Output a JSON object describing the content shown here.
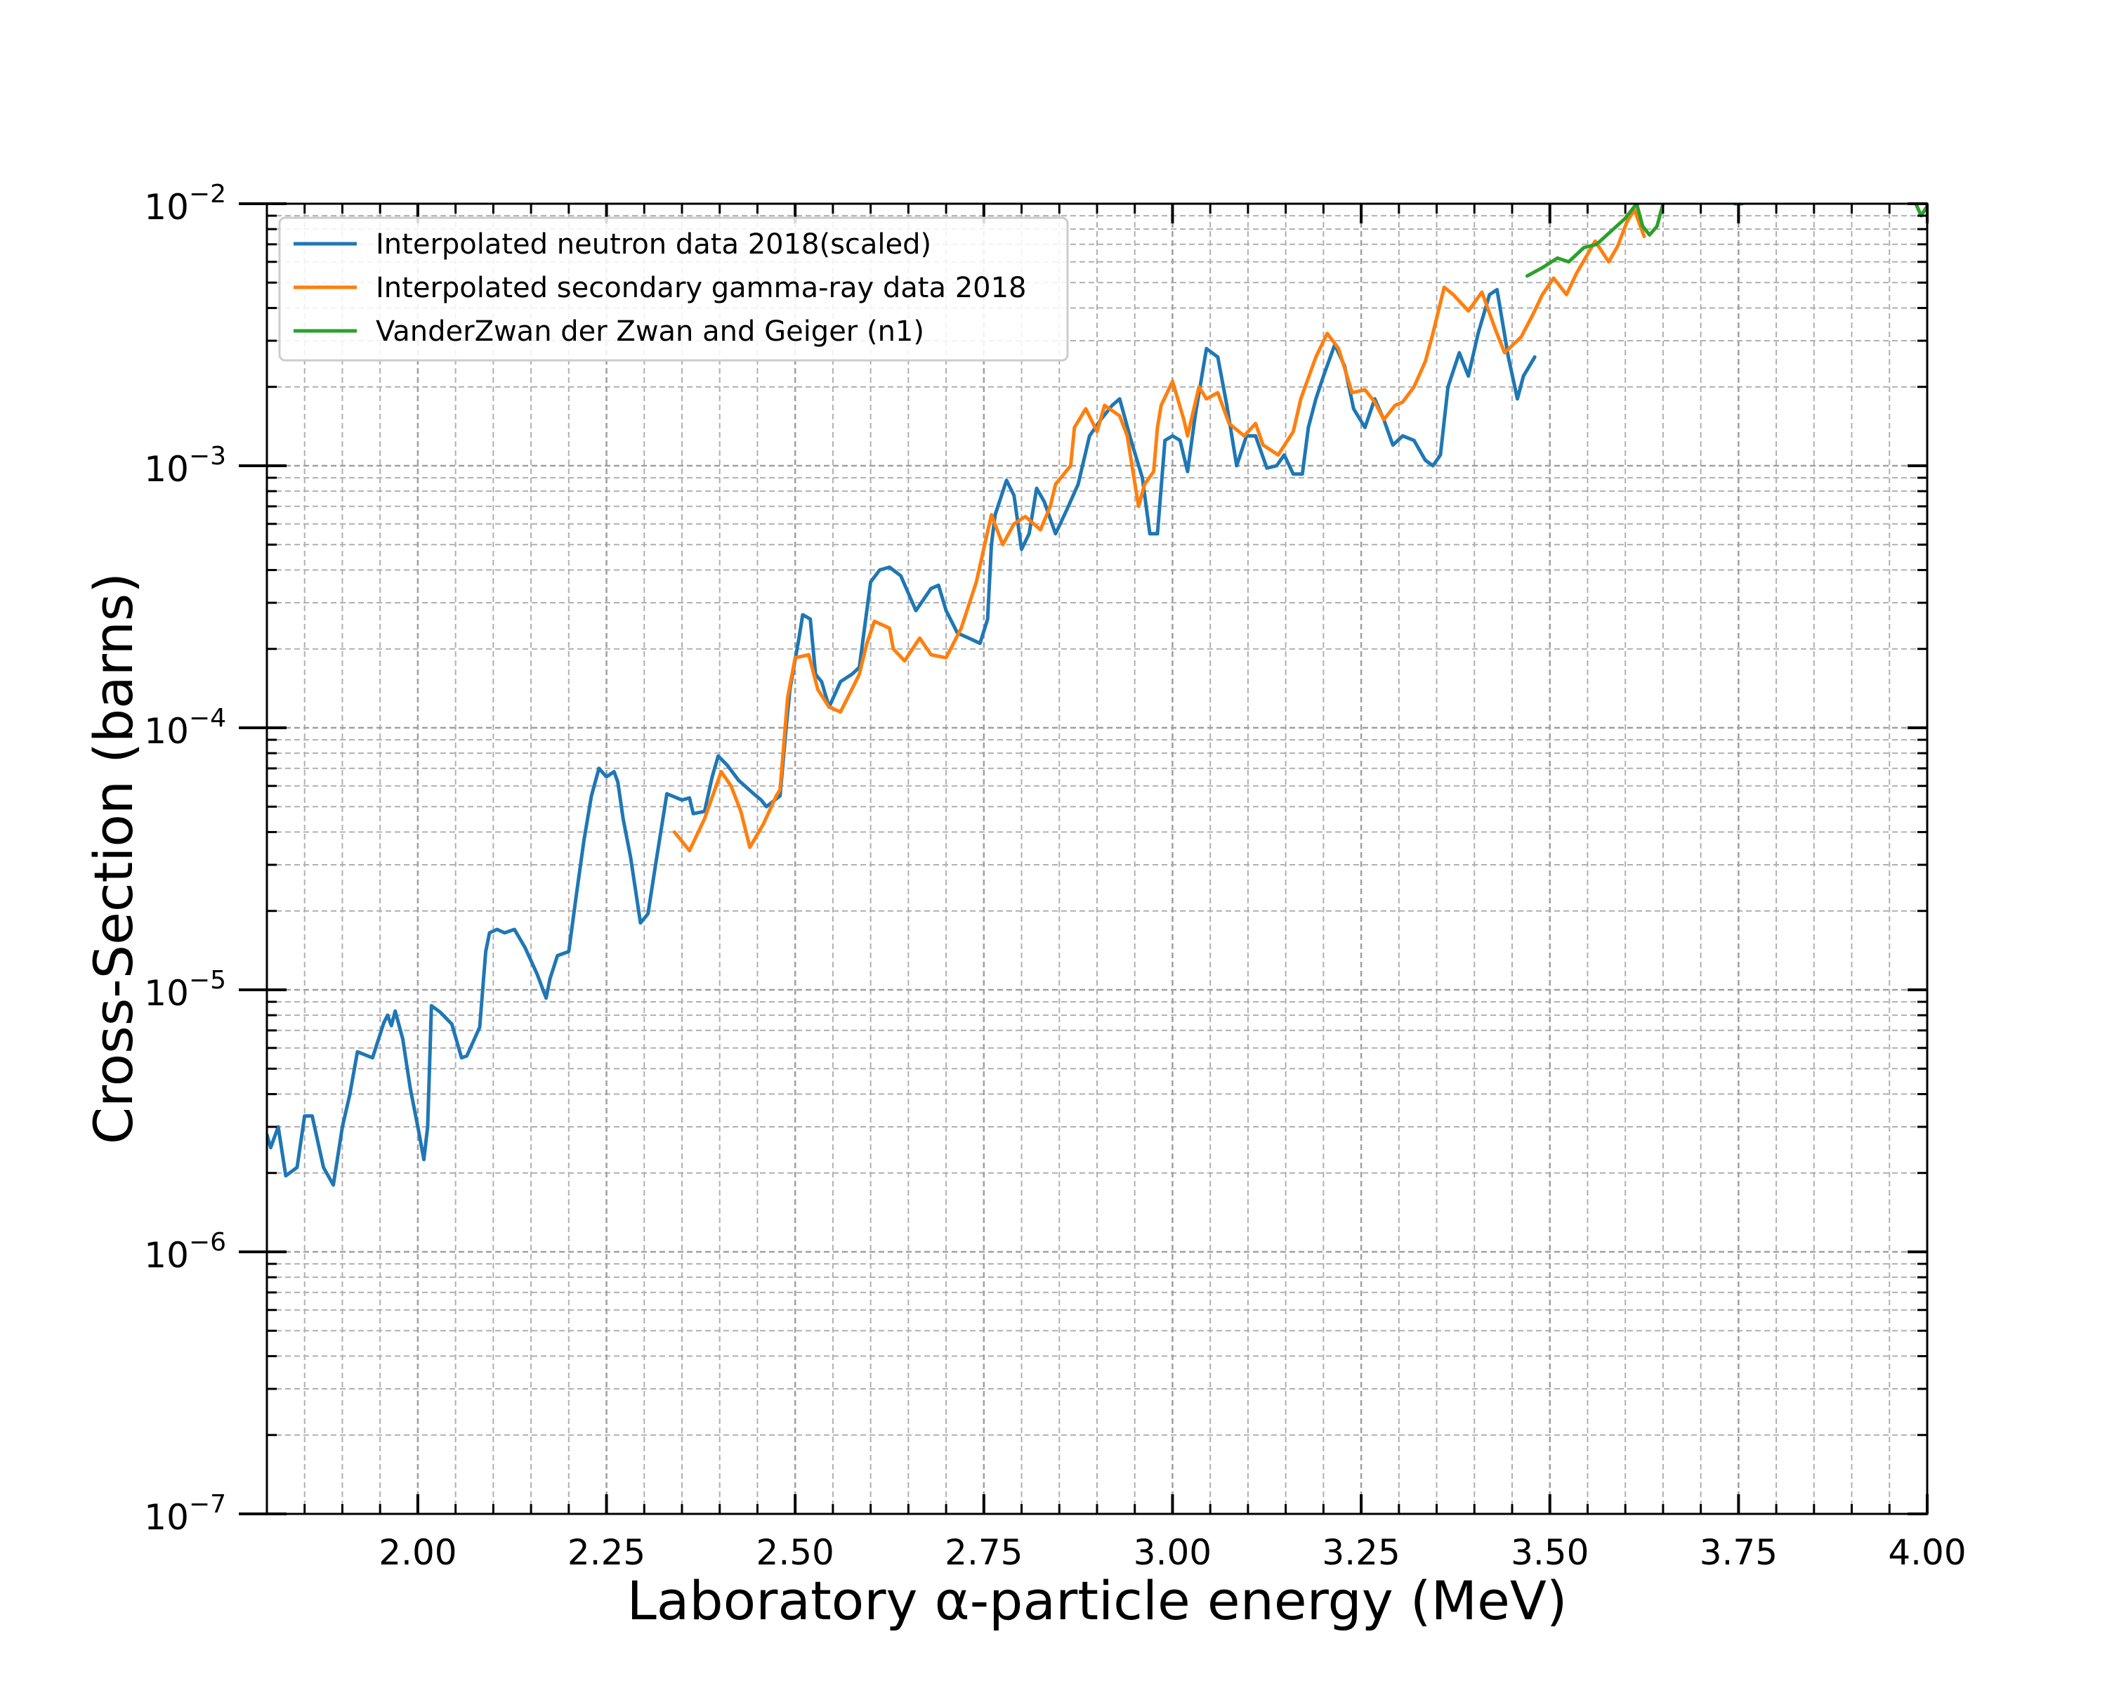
{
  "chart_data": {
    "type": "line",
    "xlabel": "Laboratory α-particle energy (MeV)",
    "ylabel": "Cross-Section (barns)",
    "xlim": [
      1.8,
      4.0
    ],
    "ylim": [
      1e-07,
      0.01
    ],
    "yscale": "log",
    "grid": true,
    "legend_position": "top-left",
    "x_ticks": [
      {
        "value": 2.0,
        "label": "2.00"
      },
      {
        "value": 2.25,
        "label": "2.25"
      },
      {
        "value": 2.5,
        "label": "2.50"
      },
      {
        "value": 2.75,
        "label": "2.75"
      },
      {
        "value": 3.0,
        "label": "3.00"
      },
      {
        "value": 3.25,
        "label": "3.25"
      },
      {
        "value": 3.5,
        "label": "3.50"
      },
      {
        "value": 3.75,
        "label": "3.75"
      },
      {
        "value": 4.0,
        "label": "4.00"
      }
    ],
    "y_ticks": [
      {
        "value": 1e-07,
        "base": "10",
        "exp": "−7"
      },
      {
        "value": 1e-06,
        "base": "10",
        "exp": "−6"
      },
      {
        "value": 1e-05,
        "base": "10",
        "exp": "−5"
      },
      {
        "value": 0.0001,
        "base": "10",
        "exp": "−4"
      },
      {
        "value": 0.001,
        "base": "10",
        "exp": "−3"
      },
      {
        "value": 0.01,
        "base": "10",
        "exp": "−2"
      }
    ],
    "series": [
      {
        "name": "Interpolated neutron data 2018(scaled)",
        "color": "#1f77b4",
        "points": [
          [
            1.8,
            2.8e-06
          ],
          [
            1.805,
            2.5e-06
          ],
          [
            1.815,
            3e-06
          ],
          [
            1.825,
            1.95e-06
          ],
          [
            1.84,
            2.1e-06
          ],
          [
            1.85,
            3.3e-06
          ],
          [
            1.86,
            3.3e-06
          ],
          [
            1.875,
            2.1e-06
          ],
          [
            1.888,
            1.8e-06
          ],
          [
            1.9,
            3e-06
          ],
          [
            1.91,
            4e-06
          ],
          [
            1.92,
            5.8e-06
          ],
          [
            1.94,
            5.5e-06
          ],
          [
            1.955,
            7.5e-06
          ],
          [
            1.96,
            8e-06
          ],
          [
            1.965,
            7.3e-06
          ],
          [
            1.97,
            8.3e-06
          ],
          [
            1.98,
            6.5e-06
          ],
          [
            1.99,
            4.2e-06
          ],
          [
            2.0,
            3e-06
          ],
          [
            2.008,
            2.25e-06
          ],
          [
            2.013,
            3e-06
          ],
          [
            2.018,
            8.7e-06
          ],
          [
            2.03,
            8.2e-06
          ],
          [
            2.045,
            7.4e-06
          ],
          [
            2.058,
            5.5e-06
          ],
          [
            2.065,
            5.6e-06
          ],
          [
            2.082,
            7.2e-06
          ],
          [
            2.09,
            1.4e-05
          ],
          [
            2.095,
            1.65e-05
          ],
          [
            2.105,
            1.7e-05
          ],
          [
            2.115,
            1.65e-05
          ],
          [
            2.128,
            1.7e-05
          ],
          [
            2.142,
            1.45e-05
          ],
          [
            2.158,
            1.15e-05
          ],
          [
            2.17,
            9.3e-06
          ],
          [
            2.175,
            1.1e-05
          ],
          [
            2.185,
            1.35e-05
          ],
          [
            2.2,
            1.4e-05
          ],
          [
            2.21,
            2.3e-05
          ],
          [
            2.22,
            3.7e-05
          ],
          [
            2.23,
            5.5e-05
          ],
          [
            2.24,
            7e-05
          ],
          [
            2.25,
            6.5e-05
          ],
          [
            2.26,
            6.8e-05
          ],
          [
            2.265,
            6.2e-05
          ],
          [
            2.272,
            4.5e-05
          ],
          [
            2.282,
            3.2e-05
          ],
          [
            2.295,
            1.8e-05
          ],
          [
            2.305,
            1.95e-05
          ],
          [
            2.315,
            3e-05
          ],
          [
            2.32,
            3.7e-05
          ],
          [
            2.33,
            5.6e-05
          ],
          [
            2.35,
            5.3e-05
          ],
          [
            2.36,
            5.4e-05
          ],
          [
            2.365,
            4.7e-05
          ],
          [
            2.38,
            4.8e-05
          ],
          [
            2.39,
            6.5e-05
          ],
          [
            2.398,
            7.8e-05
          ],
          [
            2.41,
            7.2e-05
          ],
          [
            2.425,
            6.3e-05
          ],
          [
            2.445,
            5.6e-05
          ],
          [
            2.455,
            5.3e-05
          ],
          [
            2.462,
            5e-05
          ],
          [
            2.48,
            5.5e-05
          ],
          [
            2.488,
            0.0001
          ],
          [
            2.493,
            0.00014
          ],
          [
            2.505,
            0.00022
          ],
          [
            2.51,
            0.00027
          ],
          [
            2.52,
            0.00026
          ],
          [
            2.527,
            0.00016
          ],
          [
            2.535,
            0.00015
          ],
          [
            2.545,
            0.00012
          ],
          [
            2.56,
            0.00015
          ],
          [
            2.575,
            0.00016
          ],
          [
            2.585,
            0.00017
          ],
          [
            2.6,
            0.00036
          ],
          [
            2.612,
            0.0004
          ],
          [
            2.625,
            0.00041
          ],
          [
            2.64,
            0.00038
          ],
          [
            2.66,
            0.00028
          ],
          [
            2.68,
            0.00034
          ],
          [
            2.69,
            0.00035
          ],
          [
            2.7,
            0.00028
          ],
          [
            2.715,
            0.00023
          ],
          [
            2.73,
            0.00022
          ],
          [
            2.745,
            0.00021
          ],
          [
            2.755,
            0.00026
          ],
          [
            2.76,
            0.0005
          ],
          [
            2.765,
            0.00065
          ],
          [
            2.78,
            0.00088
          ],
          [
            2.79,
            0.00077
          ],
          [
            2.8,
            0.00048
          ],
          [
            2.81,
            0.00055
          ],
          [
            2.82,
            0.00082
          ],
          [
            2.83,
            0.00073
          ],
          [
            2.845,
            0.00055
          ],
          [
            2.86,
            0.00068
          ],
          [
            2.875,
            0.00085
          ],
          [
            2.89,
            0.0013
          ],
          [
            2.905,
            0.0015
          ],
          [
            2.92,
            0.0017
          ],
          [
            2.93,
            0.0018
          ],
          [
            2.945,
            0.00125
          ],
          [
            2.96,
            0.0009
          ],
          [
            2.97,
            0.00055
          ],
          [
            2.98,
            0.00055
          ],
          [
            2.99,
            0.00125
          ],
          [
            3.0,
            0.0013
          ],
          [
            3.01,
            0.00125
          ],
          [
            3.02,
            0.00095
          ],
          [
            3.03,
            0.00155
          ],
          [
            3.045,
            0.0028
          ],
          [
            3.06,
            0.0026
          ],
          [
            3.072,
            0.0017
          ],
          [
            3.085,
            0.001
          ],
          [
            3.098,
            0.0013
          ],
          [
            3.11,
            0.0013
          ],
          [
            3.125,
            0.00098
          ],
          [
            3.138,
            0.001
          ],
          [
            3.148,
            0.0011
          ],
          [
            3.16,
            0.00093
          ],
          [
            3.172,
            0.00093
          ],
          [
            3.18,
            0.0014
          ],
          [
            3.19,
            0.0018
          ],
          [
            3.2,
            0.0022
          ],
          [
            3.215,
            0.0029
          ],
          [
            3.228,
            0.0024
          ],
          [
            3.24,
            0.00165
          ],
          [
            3.255,
            0.0014
          ],
          [
            3.268,
            0.0018
          ],
          [
            3.28,
            0.0015
          ],
          [
            3.292,
            0.0012
          ],
          [
            3.305,
            0.0013
          ],
          [
            3.32,
            0.00125
          ],
          [
            3.335,
            0.00105
          ],
          [
            3.345,
            0.001
          ],
          [
            3.355,
            0.0011
          ],
          [
            3.365,
            0.002
          ],
          [
            3.38,
            0.0027
          ],
          [
            3.392,
            0.0022
          ],
          [
            3.405,
            0.0032
          ],
          [
            3.42,
            0.0045
          ],
          [
            3.43,
            0.0047
          ],
          [
            3.445,
            0.0026
          ],
          [
            3.457,
            0.0018
          ],
          [
            3.465,
            0.0022
          ],
          [
            3.48,
            0.0026
          ]
        ]
      },
      {
        "name": "Interpolated secondary gamma-ray data 2018",
        "color": "#ff7f0e",
        "points": [
          [
            2.34,
            4e-05
          ],
          [
            2.36,
            3.4e-05
          ],
          [
            2.38,
            4.5e-05
          ],
          [
            2.402,
            6.8e-05
          ],
          [
            2.415,
            6e-05
          ],
          [
            2.428,
            4.8e-05
          ],
          [
            2.44,
            3.5e-05
          ],
          [
            2.458,
            4.3e-05
          ],
          [
            2.475,
            5.5e-05
          ],
          [
            2.48,
            5.8e-05
          ],
          [
            2.49,
            0.00013
          ],
          [
            2.5,
            0.000185
          ],
          [
            2.518,
            0.00019
          ],
          [
            2.53,
            0.00014
          ],
          [
            2.545,
            0.00012
          ],
          [
            2.56,
            0.000115
          ],
          [
            2.575,
            0.00014
          ],
          [
            2.585,
            0.00016
          ],
          [
            2.595,
            0.00021
          ],
          [
            2.605,
            0.000255
          ],
          [
            2.625,
            0.00024
          ],
          [
            2.63,
            0.0002
          ],
          [
            2.645,
            0.00018
          ],
          [
            2.665,
            0.00022
          ],
          [
            2.68,
            0.00019
          ],
          [
            2.7,
            0.000185
          ],
          [
            2.72,
            0.00024
          ],
          [
            2.74,
            0.00036
          ],
          [
            2.76,
            0.00065
          ],
          [
            2.775,
            0.0005
          ],
          [
            2.79,
            0.0006
          ],
          [
            2.805,
            0.00064
          ],
          [
            2.825,
            0.00057
          ],
          [
            2.838,
            0.0007
          ],
          [
            2.845,
            0.00085
          ],
          [
            2.865,
            0.001
          ],
          [
            2.87,
            0.0014
          ],
          [
            2.885,
            0.00165
          ],
          [
            2.9,
            0.00135
          ],
          [
            2.91,
            0.0017
          ],
          [
            2.93,
            0.00155
          ],
          [
            2.94,
            0.0013
          ],
          [
            2.955,
            0.0007
          ],
          [
            2.963,
            0.00085
          ],
          [
            2.975,
            0.00095
          ],
          [
            2.98,
            0.0014
          ],
          [
            2.985,
            0.0017
          ],
          [
            3.0,
            0.0021
          ],
          [
            3.015,
            0.0015
          ],
          [
            3.02,
            0.0013
          ],
          [
            3.035,
            0.002
          ],
          [
            3.045,
            0.0018
          ],
          [
            3.06,
            0.0019
          ],
          [
            3.075,
            0.00145
          ],
          [
            3.095,
            0.0013
          ],
          [
            3.11,
            0.00145
          ],
          [
            3.12,
            0.0012
          ],
          [
            3.14,
            0.0011
          ],
          [
            3.16,
            0.00135
          ],
          [
            3.17,
            0.0018
          ],
          [
            3.19,
            0.0026
          ],
          [
            3.205,
            0.0032
          ],
          [
            3.22,
            0.0028
          ],
          [
            3.238,
            0.0019
          ],
          [
            3.255,
            0.00195
          ],
          [
            3.268,
            0.00175
          ],
          [
            3.28,
            0.0015
          ],
          [
            3.295,
            0.0017
          ],
          [
            3.305,
            0.00175
          ],
          [
            3.32,
            0.002
          ],
          [
            3.335,
            0.0025
          ],
          [
            3.345,
            0.0032
          ],
          [
            3.36,
            0.0048
          ],
          [
            3.372,
            0.0045
          ],
          [
            3.392,
            0.0039
          ],
          [
            3.41,
            0.0046
          ],
          [
            3.428,
            0.0033
          ],
          [
            3.44,
            0.0027
          ],
          [
            3.462,
            0.0031
          ],
          [
            3.478,
            0.0038
          ],
          [
            3.49,
            0.0045
          ],
          [
            3.505,
            0.0052
          ],
          [
            3.522,
            0.0045
          ],
          [
            3.535,
            0.0054
          ],
          [
            3.56,
            0.0072
          ],
          [
            3.578,
            0.006
          ],
          [
            3.59,
            0.0069
          ],
          [
            3.602,
            0.0085
          ],
          [
            3.612,
            0.0095
          ],
          [
            3.62,
            0.0082
          ],
          [
            3.625,
            0.0075
          ]
        ]
      },
      {
        "name": "VanderZwan der Zwan and Geiger (n1)",
        "color": "#2ca02c",
        "points": [
          [
            3.47,
            0.0053
          ],
          [
            3.49,
            0.0057
          ],
          [
            3.51,
            0.0062
          ],
          [
            3.525,
            0.006
          ],
          [
            3.545,
            0.0068
          ],
          [
            3.562,
            0.007
          ],
          [
            3.58,
            0.0078
          ],
          [
            3.6,
            0.0088
          ],
          [
            3.615,
            0.01
          ],
          [
            3.623,
            0.0082
          ],
          [
            3.632,
            0.0076
          ],
          [
            3.642,
            0.0082
          ],
          [
            3.65,
            0.01
          ],
          [
            3.655,
            0.0105
          ]
        ],
        "edge_points": [
          [
            3.745,
            0.01
          ],
          [
            3.755,
            0.01
          ]
        ],
        "tail_points": [
          [
            3.985,
            0.01
          ],
          [
            3.992,
            0.009
          ],
          [
            4.0,
            0.0098
          ]
        ]
      }
    ]
  }
}
